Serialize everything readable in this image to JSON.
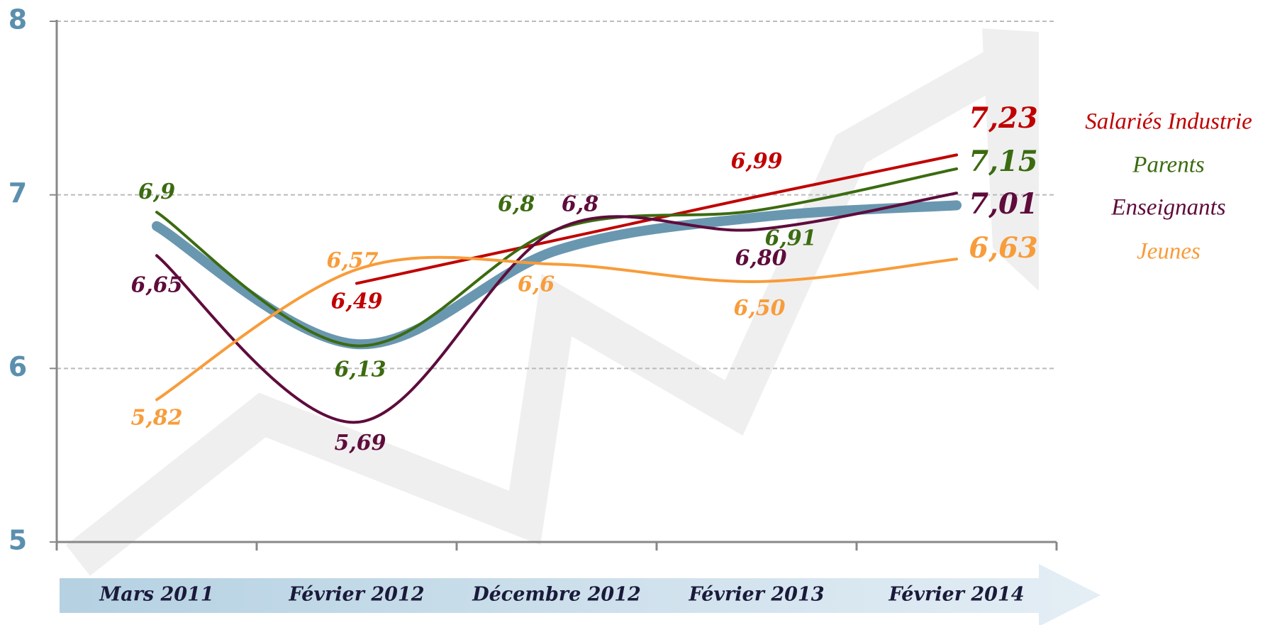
{
  "chart_data": {
    "type": "line",
    "categories": [
      "Mars 2011",
      "Février 2012",
      "Décembre 2012",
      "Février 2013",
      "Février 2014"
    ],
    "series": [
      {
        "color": "#6a97b0",
        "values": [
          6.82,
          6.14,
          6.68,
          6.87,
          6.94
        ],
        "smooth": true,
        "width": 14
      },
      {
        "name": "Salariés Industrie",
        "color": "#c00000",
        "values": [
          null,
          6.49,
          6.74,
          6.99,
          7.23
        ],
        "value_labels": [
          null,
          "6,49",
          null,
          "6,99",
          "7,23"
        ],
        "smooth": false,
        "width": 4
      },
      {
        "name": "Parents",
        "color": "#3b6b10",
        "values": [
          6.9,
          6.13,
          6.8,
          6.91,
          7.15
        ],
        "value_labels": [
          "6,9",
          "6,13",
          "6,8",
          "6,91",
          "7,15"
        ],
        "smooth": true,
        "width": 4
      },
      {
        "name": "Enseignants",
        "color": "#5e0c3c",
        "values": [
          6.65,
          5.69,
          6.8,
          6.8,
          7.01
        ],
        "value_labels": [
          "6,65",
          "5,69",
          "6,8",
          "6,80",
          "7,01"
        ],
        "smooth": true,
        "width": 4
      },
      {
        "name": "Jeunes",
        "color": "#f89c3a",
        "values": [
          5.82,
          6.57,
          6.6,
          6.5,
          6.63
        ],
        "value_labels": [
          "5,82",
          "6,57",
          "6,6",
          "6,50",
          "6,63"
        ],
        "smooth": true,
        "width": 4
      }
    ],
    "ylim": [
      5,
      8
    ],
    "yticks": [
      5,
      6,
      7,
      8
    ],
    "grid": true,
    "legend": "right"
  }
}
